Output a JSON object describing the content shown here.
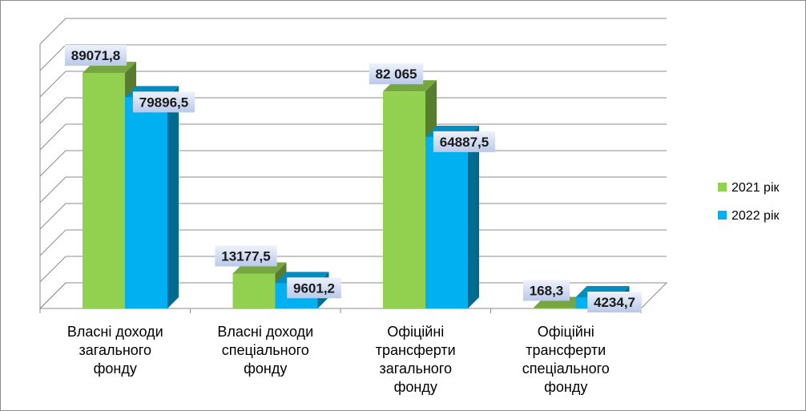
{
  "chart_data": {
    "type": "bar",
    "categories": [
      [
        "Власні доходи",
        "загального",
        "фонду"
      ],
      [
        "Власні доходи",
        "спеціального",
        "фонду"
      ],
      [
        "Офіційні",
        "трансферти",
        "загального",
        "фонду"
      ],
      [
        "Офіційні",
        "трансферти",
        "спеціального",
        "фонду"
      ]
    ],
    "series": [
      {
        "name": "2021 рік",
        "color": "#92d050",
        "values": [
          89071.8,
          13177.5,
          82065,
          168.3
        ],
        "labels": [
          "89071,8",
          "13177,5",
          "82 065",
          "168,3"
        ]
      },
      {
        "name": "2022 рік",
        "color": "#00b0f0",
        "values": [
          79896.5,
          9601.2,
          64887.5,
          4234.7
        ],
        "labels": [
          "79896,5",
          "9601,2",
          "64887,5",
          "4234,7"
        ]
      }
    ],
    "ylim": [
      0,
      100000
    ],
    "grid": true,
    "legend": "right"
  }
}
